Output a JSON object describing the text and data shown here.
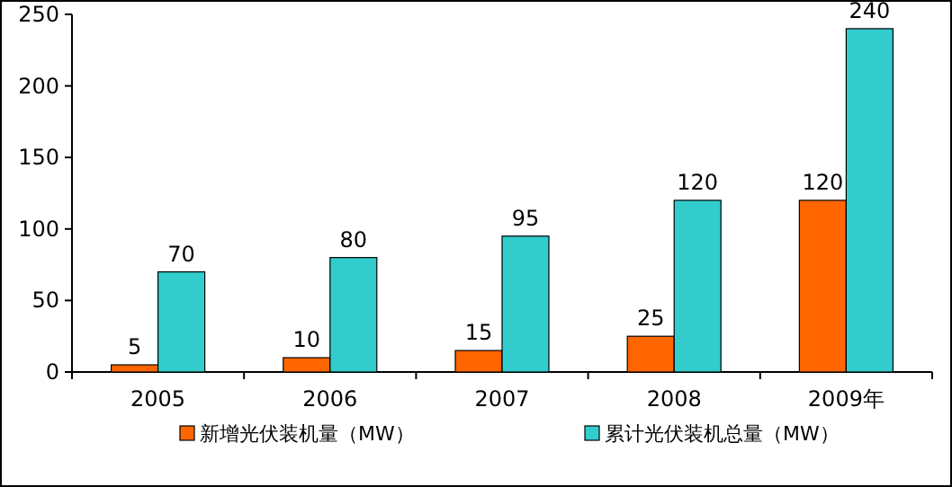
{
  "chart_data": {
    "type": "bar",
    "categories": [
      "2005",
      "2006",
      "2007",
      "2008",
      "2009年"
    ],
    "series": [
      {
        "name": "新增光伏装机量（MW）",
        "color": "#ff6600",
        "values": [
          5,
          10,
          15,
          25,
          120
        ]
      },
      {
        "name": "累计光伏装机总量（MW）",
        "color": "#33cccc",
        "values": [
          70,
          80,
          95,
          120,
          240
        ]
      }
    ],
    "ylim": [
      0,
      250
    ],
    "yticks": [
      0,
      50,
      100,
      150,
      200,
      250
    ],
    "data_labels": true,
    "legend": "bottom"
  }
}
